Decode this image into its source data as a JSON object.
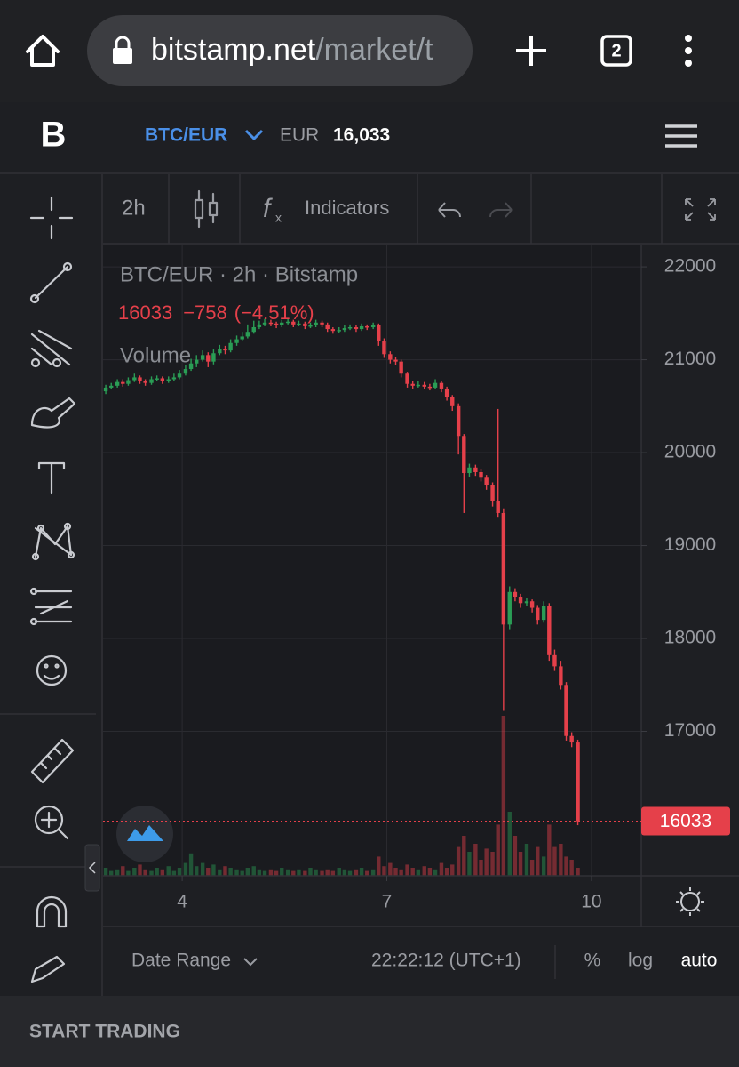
{
  "browser": {
    "url_host": "bitstamp.net",
    "url_path": "/market/t",
    "tab_count": "2"
  },
  "header": {
    "pair": "BTC/EUR",
    "currency": "EUR",
    "price": "16,033"
  },
  "toolbar": {
    "interval": "2h",
    "indicators": "Indicators"
  },
  "chart_data": {
    "type": "candlestick",
    "legend_title": "BTC/EUR · 2h · Bitstamp",
    "change": "−758",
    "change_pct": "(−4.51%)",
    "volume_label": "Volume",
    "last_price": 16033,
    "x": [
      2.88,
      2.96,
      3.05,
      3.13,
      3.21,
      3.3,
      3.38,
      3.46,
      3.55,
      3.63,
      3.71,
      3.8,
      3.88,
      3.96,
      4.05,
      4.13,
      4.21,
      4.3,
      4.38,
      4.46,
      4.55,
      4.63,
      4.71,
      4.8,
      4.88,
      4.96,
      5.05,
      5.13,
      5.21,
      5.3,
      5.38,
      5.46,
      5.55,
      5.63,
      5.71,
      5.8,
      5.88,
      5.96,
      6.05,
      6.13,
      6.21,
      6.3,
      6.38,
      6.46,
      6.55,
      6.63,
      6.71,
      6.8,
      6.88,
      6.96,
      7.05,
      7.13,
      7.21,
      7.3,
      7.38,
      7.46,
      7.55,
      7.63,
      7.71,
      7.8,
      7.88,
      7.96,
      8.05,
      8.13,
      8.21,
      8.3,
      8.38,
      8.46,
      8.55,
      8.63,
      8.71,
      8.8,
      8.88,
      8.96,
      9.05,
      9.13,
      9.21,
      9.3,
      9.38,
      9.46,
      9.55,
      9.63,
      9.71,
      9.8
    ],
    "ohlc": [
      [
        20660,
        20730,
        20630,
        20700
      ],
      [
        20700,
        20750,
        20680,
        20720
      ],
      [
        20720,
        20790,
        20700,
        20760
      ],
      [
        20760,
        20790,
        20710,
        20740
      ],
      [
        20740,
        20810,
        20720,
        20780
      ],
      [
        20780,
        20850,
        20760,
        20810
      ],
      [
        20810,
        20830,
        20740,
        20770
      ],
      [
        20770,
        20790,
        20720,
        20750
      ],
      [
        20750,
        20820,
        20730,
        20790
      ],
      [
        20790,
        20830,
        20770,
        20800
      ],
      [
        20800,
        20820,
        20740,
        20770
      ],
      [
        20770,
        20820,
        20750,
        20790
      ],
      [
        20790,
        20850,
        20770,
        20810
      ],
      [
        20810,
        20890,
        20790,
        20850
      ],
      [
        20850,
        20940,
        20830,
        20900
      ],
      [
        20900,
        21010,
        20880,
        20960
      ],
      [
        20960,
        21050,
        20920,
        21000
      ],
      [
        21000,
        21100,
        20980,
        21050
      ],
      [
        21050,
        21080,
        20920,
        20980
      ],
      [
        20980,
        21110,
        20950,
        21070
      ],
      [
        21070,
        21160,
        21050,
        21120
      ],
      [
        21120,
        21150,
        21060,
        21100
      ],
      [
        21100,
        21220,
        21080,
        21180
      ],
      [
        21180,
        21260,
        21150,
        21220
      ],
      [
        21220,
        21300,
        21200,
        21250
      ],
      [
        21250,
        21380,
        21230,
        21300
      ],
      [
        21300,
        21420,
        21280,
        21350
      ],
      [
        21350,
        21420,
        21330,
        21380
      ],
      [
        21380,
        21440,
        21360,
        21400
      ],
      [
        21400,
        21430,
        21360,
        21390
      ],
      [
        21390,
        21410,
        21340,
        21370
      ],
      [
        21370,
        21430,
        21350,
        21400
      ],
      [
        21400,
        21440,
        21380,
        21410
      ],
      [
        21410,
        21430,
        21350,
        21380
      ],
      [
        21380,
        21420,
        21360,
        21390
      ],
      [
        21390,
        21410,
        21330,
        21360
      ],
      [
        21360,
        21400,
        21340,
        21370
      ],
      [
        21370,
        21430,
        21350,
        21400
      ],
      [
        21400,
        21420,
        21350,
        21380
      ],
      [
        21380,
        21400,
        21300,
        21330
      ],
      [
        21330,
        21350,
        21280,
        21310
      ],
      [
        21310,
        21350,
        21290,
        21320
      ],
      [
        21320,
        21370,
        21300,
        21340
      ],
      [
        21340,
        21380,
        21320,
        21350
      ],
      [
        21350,
        21370,
        21300,
        21330
      ],
      [
        21330,
        21390,
        21310,
        21360
      ],
      [
        21360,
        21380,
        21320,
        21350
      ],
      [
        21350,
        21400,
        21330,
        21370
      ],
      [
        21370,
        21390,
        21150,
        21200
      ],
      [
        21200,
        21230,
        21020,
        21060
      ],
      [
        21060,
        21090,
        20960,
        21000
      ],
      [
        21000,
        21030,
        20940,
        20980
      ],
      [
        20980,
        21000,
        20810,
        20850
      ],
      [
        20850,
        20870,
        20700,
        20740
      ],
      [
        20740,
        20770,
        20690,
        20720
      ],
      [
        20720,
        20770,
        20700,
        20730
      ],
      [
        20730,
        20760,
        20680,
        20710
      ],
      [
        20710,
        20740,
        20670,
        20700
      ],
      [
        20700,
        20790,
        20680,
        20750
      ],
      [
        20750,
        20770,
        20650,
        20690
      ],
      [
        20690,
        20710,
        20560,
        20600
      ],
      [
        20600,
        20620,
        20450,
        20500
      ],
      [
        20500,
        20530,
        19980,
        20180
      ],
      [
        20180,
        20200,
        19350,
        19780
      ],
      [
        19780,
        19880,
        19740,
        19840
      ],
      [
        19840,
        19870,
        19750,
        19790
      ],
      [
        19790,
        19820,
        19690,
        19730
      ],
      [
        19730,
        19760,
        19600,
        19650
      ],
      [
        19650,
        19680,
        19420,
        19480
      ],
      [
        19480,
        20470,
        19300,
        19350
      ],
      [
        19350,
        19400,
        17220,
        18150
      ],
      [
        18150,
        18560,
        18100,
        18500
      ],
      [
        18500,
        18540,
        18400,
        18450
      ],
      [
        18450,
        18480,
        18330,
        18380
      ],
      [
        18380,
        18440,
        18350,
        18400
      ],
      [
        18400,
        18420,
        18280,
        18330
      ],
      [
        18330,
        18360,
        18150,
        18200
      ],
      [
        18200,
        18400,
        18170,
        18350
      ],
      [
        18350,
        18380,
        17760,
        17820
      ],
      [
        17820,
        17880,
        17650,
        17700
      ],
      [
        17700,
        17760,
        17450,
        17500
      ],
      [
        17500,
        17530,
        16900,
        16950
      ],
      [
        16950,
        16990,
        16830,
        16880
      ],
      [
        16880,
        16910,
        15990,
        16033
      ]
    ],
    "volume": [
      5,
      3,
      4,
      6,
      3,
      5,
      7,
      4,
      3,
      5,
      4,
      6,
      3,
      5,
      8,
      14,
      6,
      8,
      5,
      7,
      4,
      6,
      5,
      4,
      3,
      5,
      6,
      4,
      3,
      4,
      3,
      5,
      4,
      3,
      4,
      3,
      5,
      4,
      3,
      4,
      3,
      5,
      4,
      3,
      4,
      5,
      3,
      4,
      12,
      6,
      8,
      5,
      4,
      7,
      5,
      4,
      6,
      5,
      4,
      8,
      5,
      7,
      18,
      25,
      15,
      20,
      10,
      17,
      15,
      32,
      100,
      40,
      25,
      15,
      20,
      10,
      18,
      12,
      32,
      18,
      20,
      12,
      10,
      5
    ],
    "volume_lim": [
      0,
      100
    ],
    "xlim": [
      2.84,
      10.73
    ],
    "xticks": [
      4,
      7,
      10
    ],
    "ylim": [
      15445,
      22240
    ],
    "yticks": [
      17000,
      18000,
      19000,
      20000,
      21000,
      22000
    ],
    "grid": true,
    "up_color": "#2a9d55",
    "down_color": "#e5404a"
  },
  "footer": {
    "date_range": "Date Range",
    "time": "22:22:12 (UTC+1)",
    "percent": "%",
    "log": "log",
    "auto": "auto"
  },
  "cta": "START TRADING"
}
